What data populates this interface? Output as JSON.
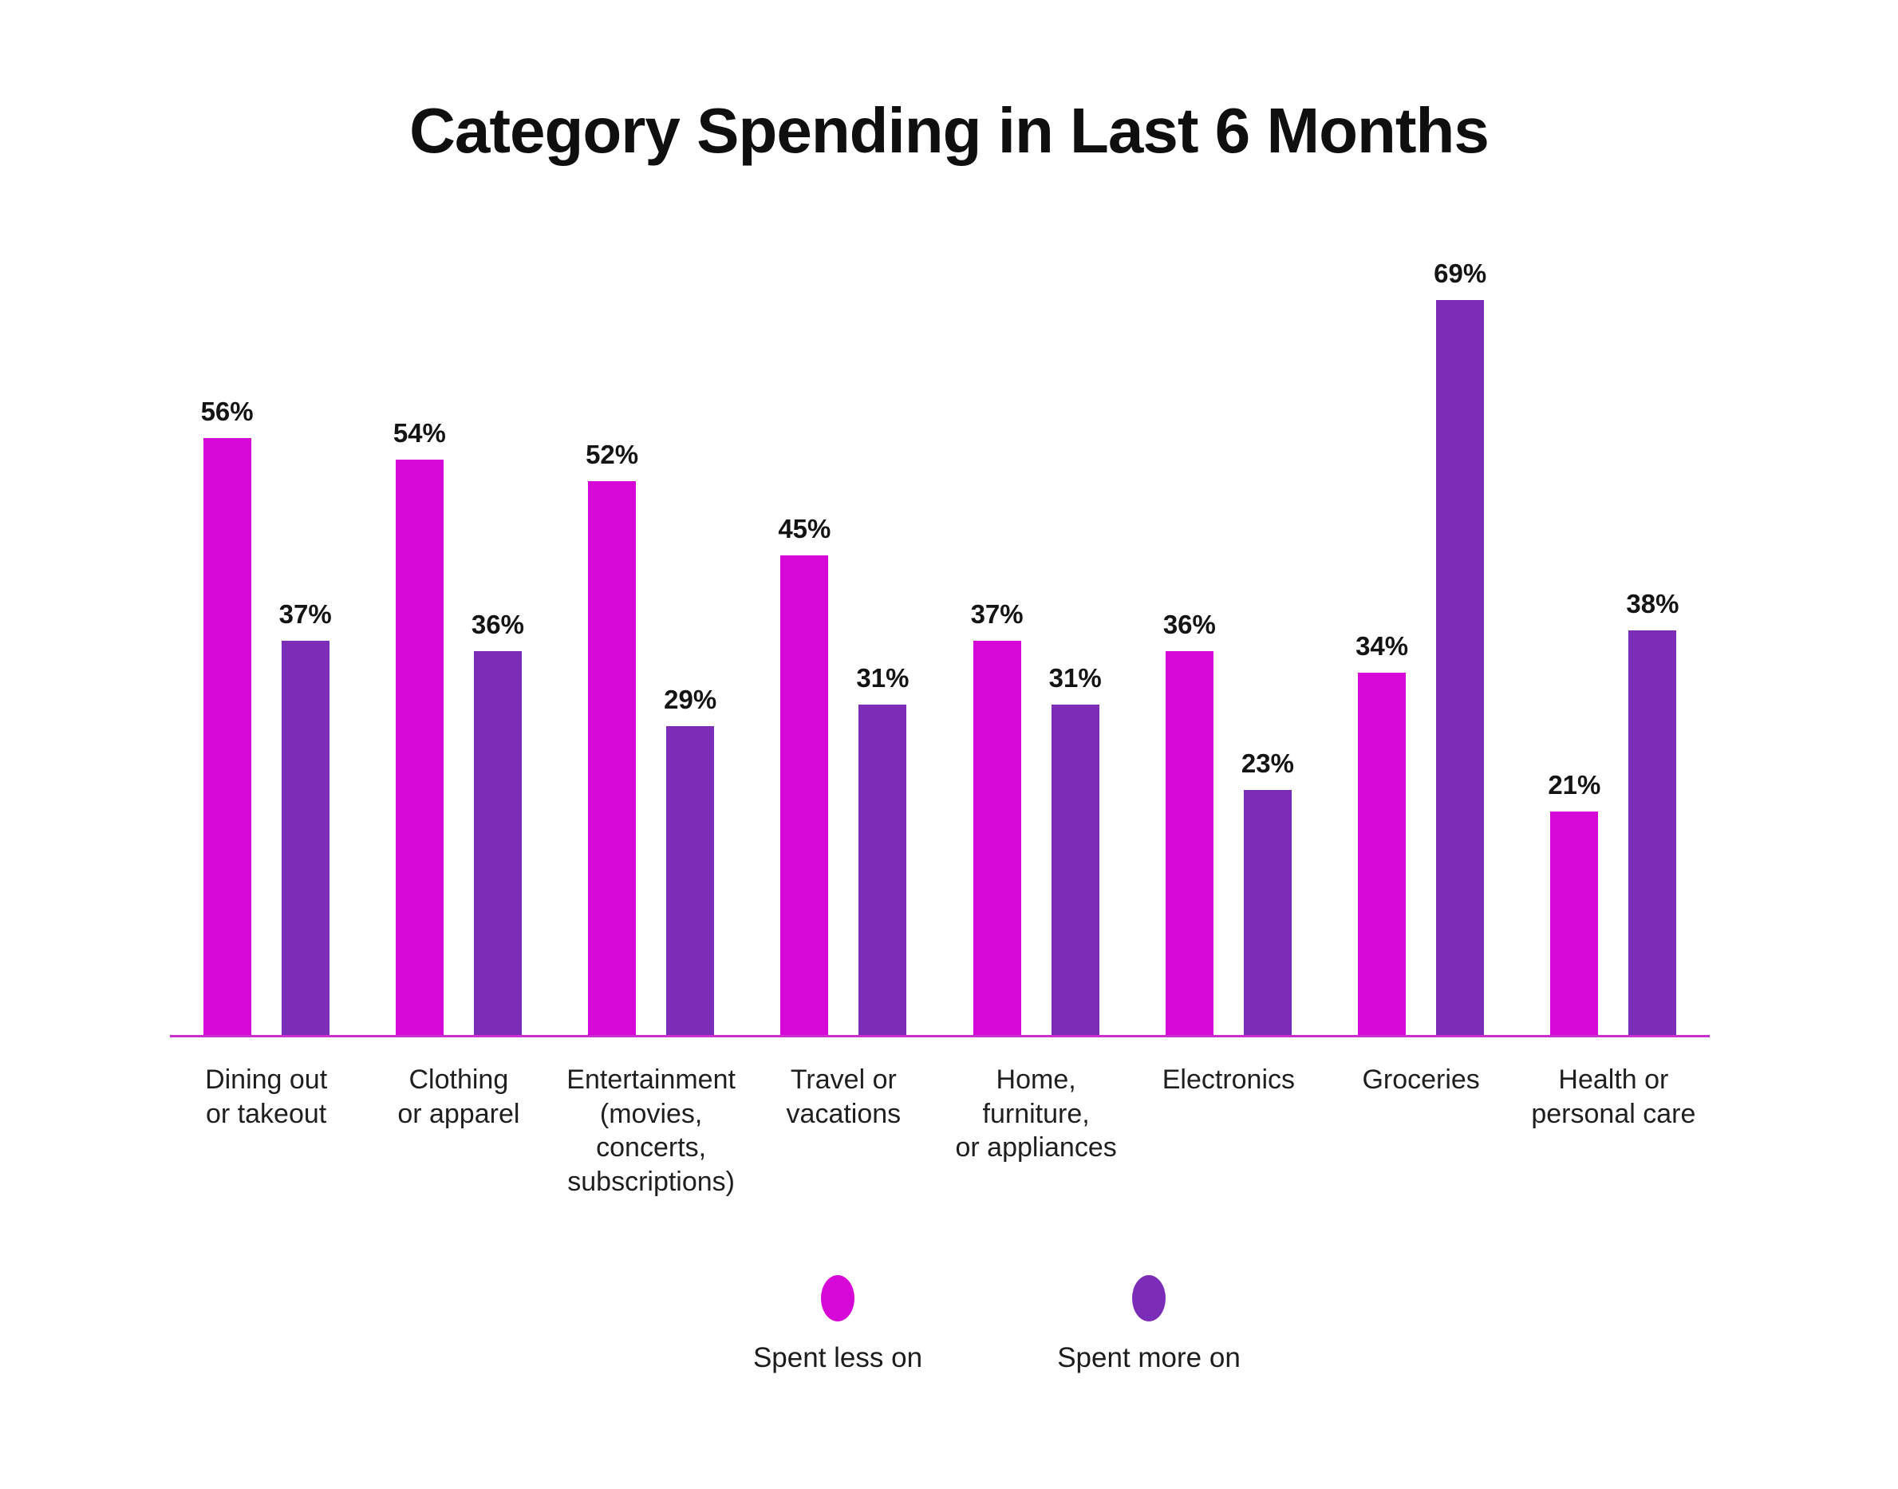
{
  "title": "Category Spending in Last 6 Months",
  "chart_data": {
    "type": "bar",
    "title": "Category Spending in Last 6 Months",
    "categories": [
      "Dining out\nor takeout",
      "Clothing\nor apparel",
      "Entertainment\n(movies,\nconcerts,\nsubscriptions)",
      "Travel or\nvacations",
      "Home,\nfurniture,\nor appliances",
      "Electronics",
      "Groceries",
      "Health or\npersonal care"
    ],
    "series": [
      {
        "name": "Spent less on",
        "color": "#D608D8",
        "values": [
          56,
          54,
          52,
          45,
          37,
          36,
          34,
          21
        ]
      },
      {
        "name": "Spent more on",
        "color": "#7C2DB8",
        "values": [
          37,
          36,
          29,
          31,
          31,
          23,
          69,
          38
        ]
      }
    ],
    "value_suffix": "%",
    "ylim": [
      0,
      100
    ],
    "grid": false,
    "legend_position": "bottom",
    "axis_line_color": "#CB2FD0",
    "xlabel": "",
    "ylabel": ""
  },
  "legend": {
    "items": [
      {
        "label": "Spent less on",
        "color": "#D608D8"
      },
      {
        "label": "Spent more on",
        "color": "#7C2DB8"
      }
    ]
  }
}
